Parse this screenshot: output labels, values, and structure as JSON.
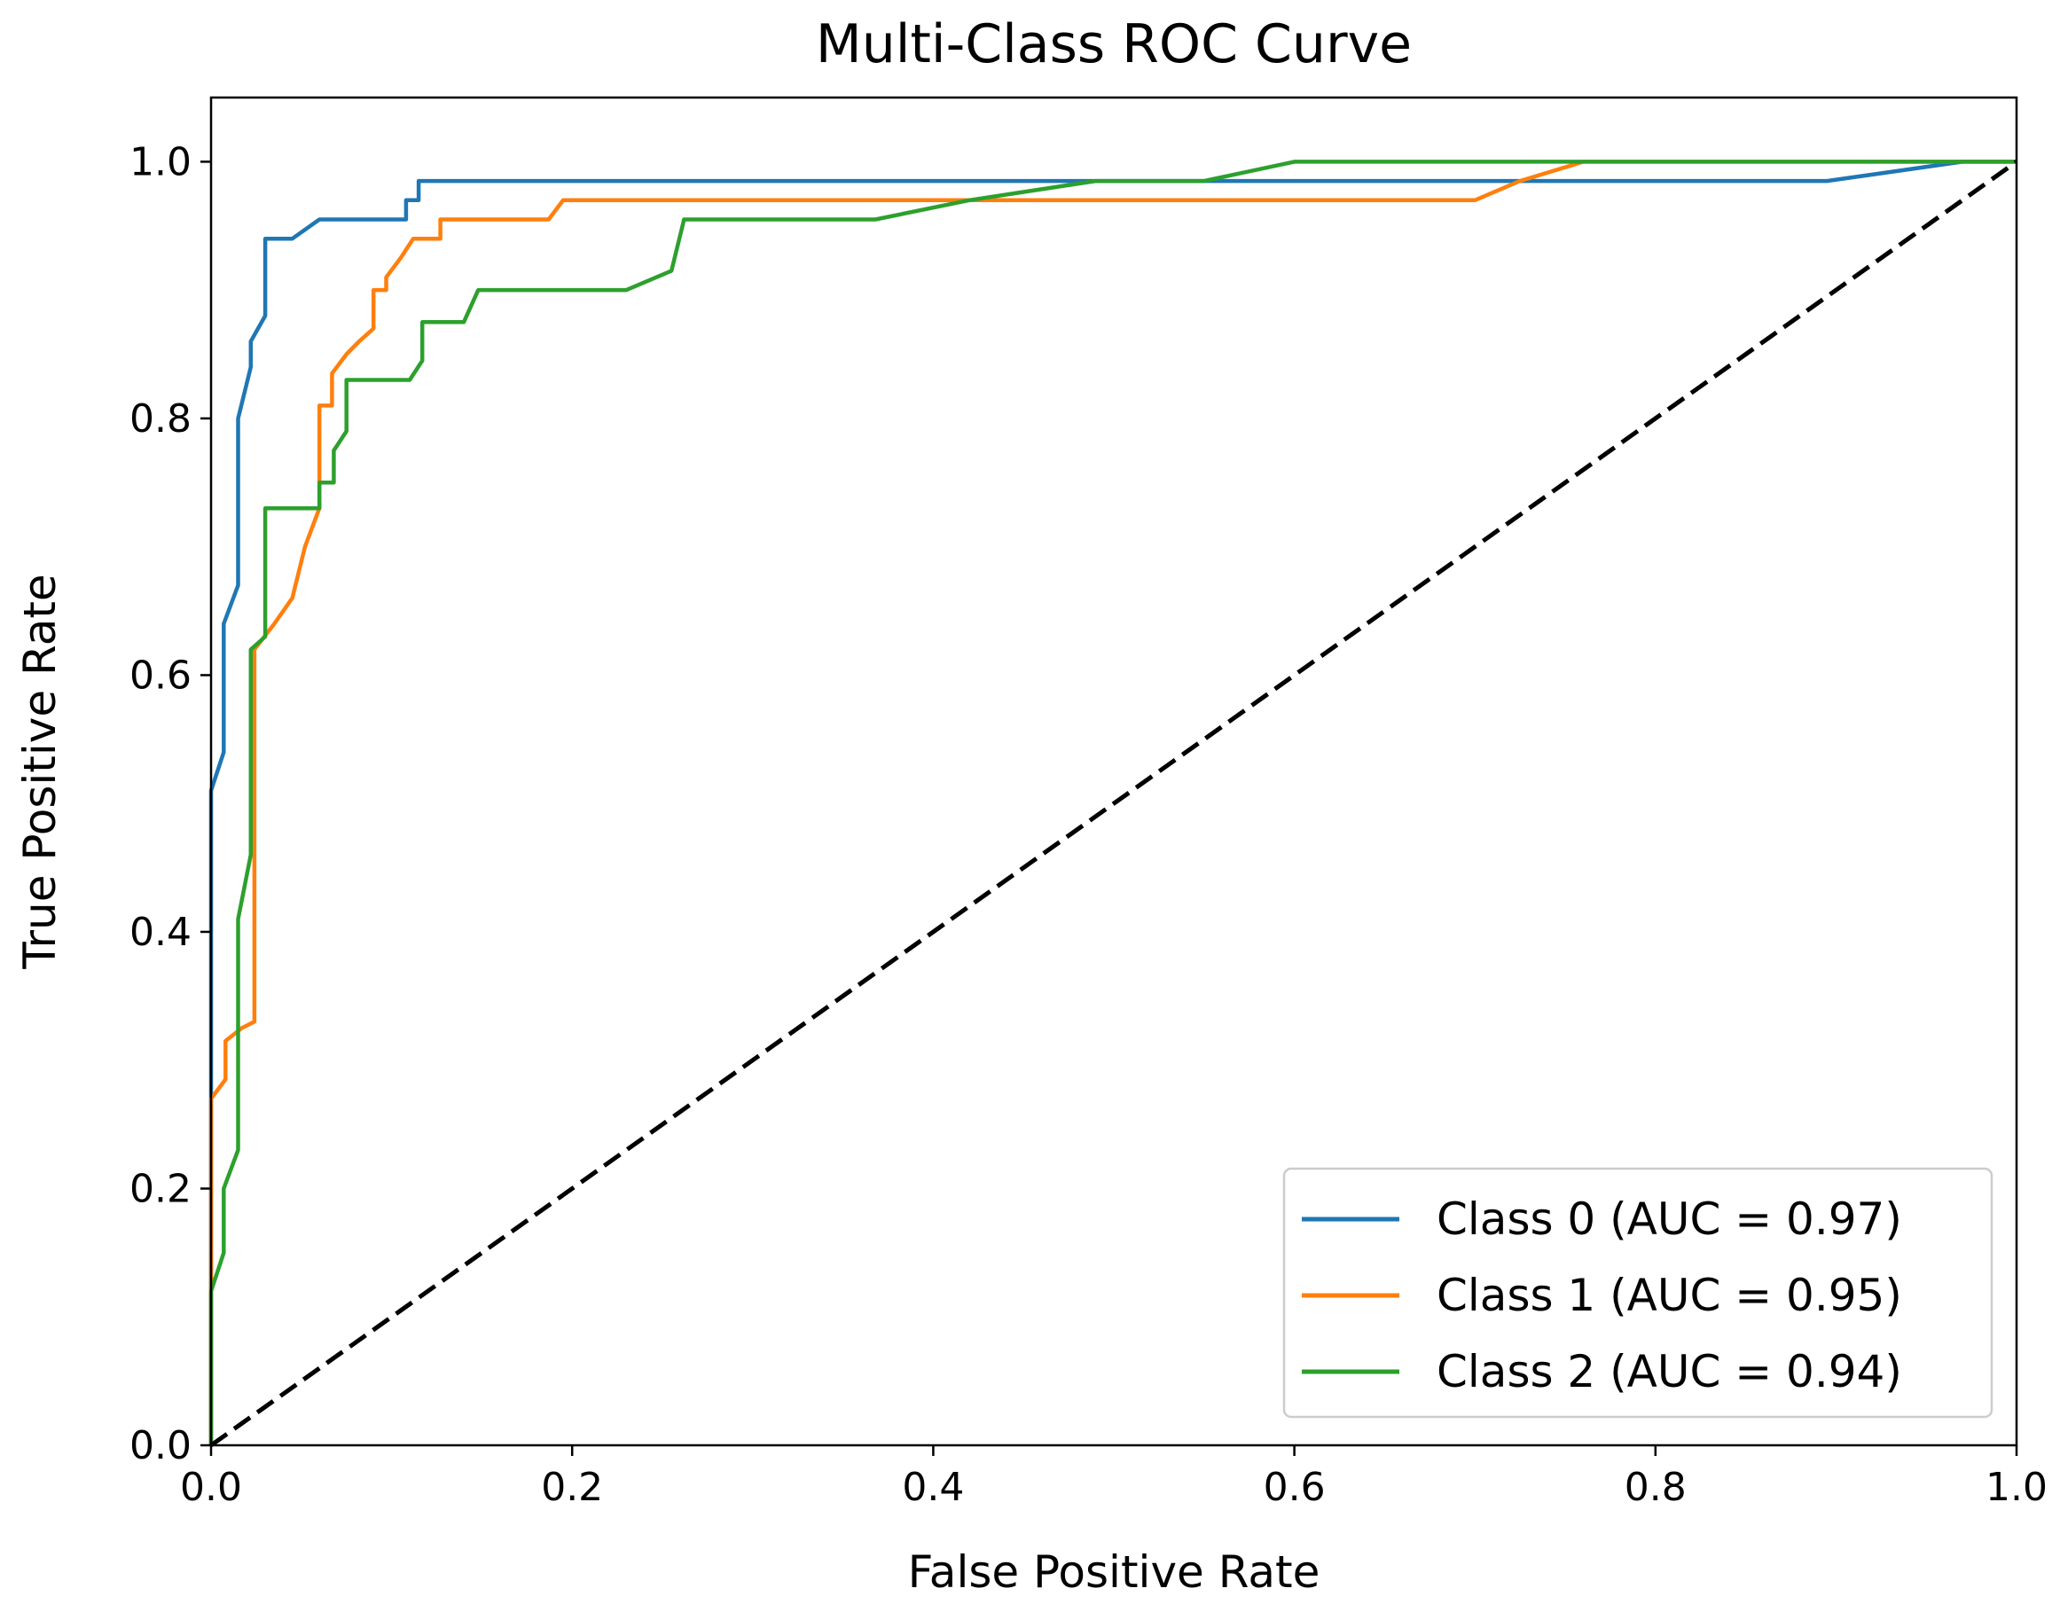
{
  "chart_data": {
    "type": "line",
    "title": "Multi-Class ROC Curve",
    "xlabel": "False Positive Rate",
    "ylabel": "True Positive Rate",
    "xlim": [
      0,
      1
    ],
    "ylim": [
      0,
      1.05
    ],
    "x_ticks": [
      "0.0",
      "0.2",
      "0.4",
      "0.6",
      "0.8",
      "1.0"
    ],
    "y_ticks": [
      "0.0",
      "0.2",
      "0.4",
      "0.6",
      "0.8",
      "1.0"
    ],
    "grid": false,
    "legend_position": "lower-right",
    "series": [
      {
        "name": "Class 0 (AUC = 0.97)",
        "color": "#1f77b4",
        "points": [
          [
            0.0,
            0.0
          ],
          [
            0.0,
            0.51
          ],
          [
            0.007,
            0.54
          ],
          [
            0.007,
            0.64
          ],
          [
            0.015,
            0.67
          ],
          [
            0.015,
            0.8
          ],
          [
            0.022,
            0.84
          ],
          [
            0.022,
            0.86
          ],
          [
            0.03,
            0.88
          ],
          [
            0.03,
            0.94
          ],
          [
            0.045,
            0.94
          ],
          [
            0.06,
            0.955
          ],
          [
            0.108,
            0.955
          ],
          [
            0.108,
            0.97
          ],
          [
            0.115,
            0.97
          ],
          [
            0.115,
            0.985
          ],
          [
            0.895,
            0.985
          ],
          [
            0.97,
            1.0
          ],
          [
            1.0,
            1.0
          ]
        ]
      },
      {
        "name": "Class 1 (AUC = 0.95)",
        "color": "#ff7f0e",
        "points": [
          [
            0.0,
            0.0
          ],
          [
            0.0,
            0.27
          ],
          [
            0.008,
            0.285
          ],
          [
            0.008,
            0.315
          ],
          [
            0.017,
            0.325
          ],
          [
            0.024,
            0.33
          ],
          [
            0.024,
            0.62
          ],
          [
            0.035,
            0.64
          ],
          [
            0.045,
            0.66
          ],
          [
            0.052,
            0.7
          ],
          [
            0.06,
            0.73
          ],
          [
            0.06,
            0.81
          ],
          [
            0.067,
            0.81
          ],
          [
            0.067,
            0.835
          ],
          [
            0.075,
            0.85
          ],
          [
            0.082,
            0.86
          ],
          [
            0.09,
            0.87
          ],
          [
            0.09,
            0.9
          ],
          [
            0.097,
            0.9
          ],
          [
            0.097,
            0.91
          ],
          [
            0.105,
            0.925
          ],
          [
            0.112,
            0.94
          ],
          [
            0.127,
            0.94
          ],
          [
            0.127,
            0.955
          ],
          [
            0.187,
            0.955
          ],
          [
            0.195,
            0.97
          ],
          [
            0.7,
            0.97
          ],
          [
            0.725,
            0.985
          ],
          [
            0.76,
            1.0
          ],
          [
            1.0,
            1.0
          ]
        ]
      },
      {
        "name": "Class 2 (AUC = 0.94)",
        "color": "#2ca02c",
        "points": [
          [
            0.0,
            0.0
          ],
          [
            0.0,
            0.12
          ],
          [
            0.007,
            0.15
          ],
          [
            0.007,
            0.2
          ],
          [
            0.015,
            0.23
          ],
          [
            0.015,
            0.41
          ],
          [
            0.022,
            0.46
          ],
          [
            0.022,
            0.62
          ],
          [
            0.03,
            0.63
          ],
          [
            0.03,
            0.73
          ],
          [
            0.06,
            0.73
          ],
          [
            0.06,
            0.75
          ],
          [
            0.068,
            0.75
          ],
          [
            0.068,
            0.775
          ],
          [
            0.075,
            0.79
          ],
          [
            0.075,
            0.83
          ],
          [
            0.11,
            0.83
          ],
          [
            0.117,
            0.845
          ],
          [
            0.117,
            0.875
          ],
          [
            0.14,
            0.875
          ],
          [
            0.148,
            0.9
          ],
          [
            0.23,
            0.9
          ],
          [
            0.255,
            0.915
          ],
          [
            0.262,
            0.955
          ],
          [
            0.368,
            0.955
          ],
          [
            0.42,
            0.97
          ],
          [
            0.49,
            0.985
          ],
          [
            0.55,
            0.985
          ],
          [
            0.6,
            1.0
          ],
          [
            1.0,
            1.0
          ]
        ]
      },
      {
        "name": "",
        "color": "#000000",
        "dashed": true,
        "points": [
          [
            0.0,
            0.0
          ],
          [
            1.0,
            1.0
          ]
        ]
      }
    ]
  }
}
